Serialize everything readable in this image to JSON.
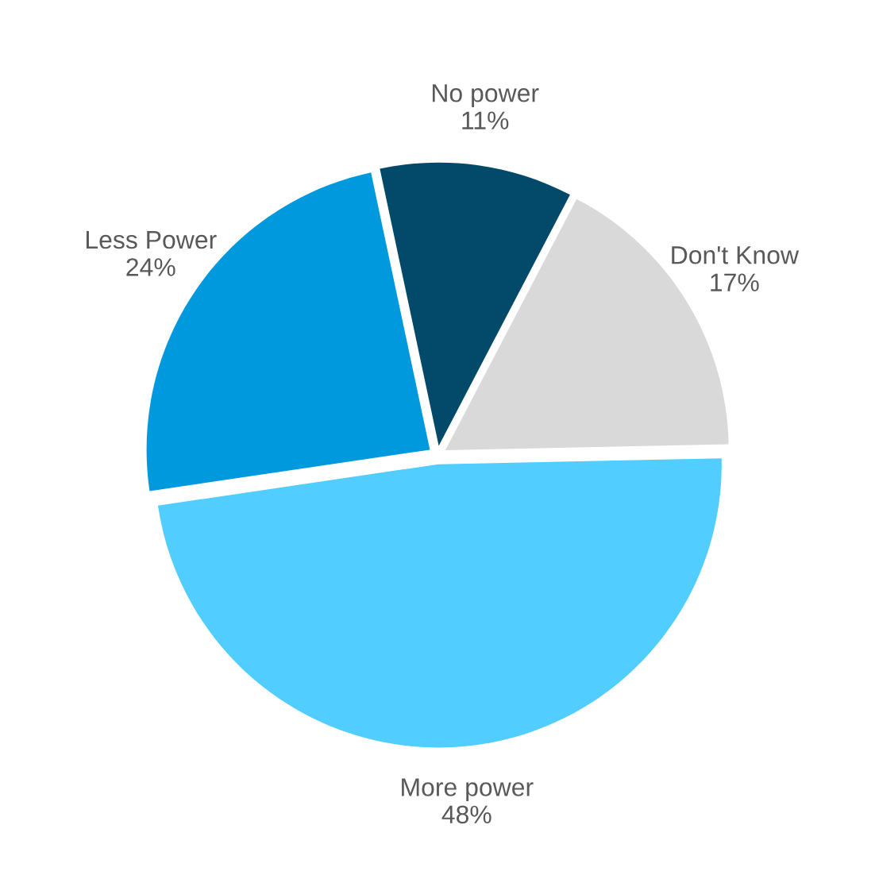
{
  "chart_data": {
    "type": "pie",
    "categories": [
      "No power",
      "Don't Know",
      "More power",
      "Less Power"
    ],
    "values": [
      11,
      17,
      48,
      24
    ],
    "colors": [
      "#034a6a",
      "#d9d9d9",
      "#52cdff",
      "#0099dd"
    ],
    "value_labels": [
      "11%",
      "17%",
      "48%",
      "24%"
    ]
  }
}
